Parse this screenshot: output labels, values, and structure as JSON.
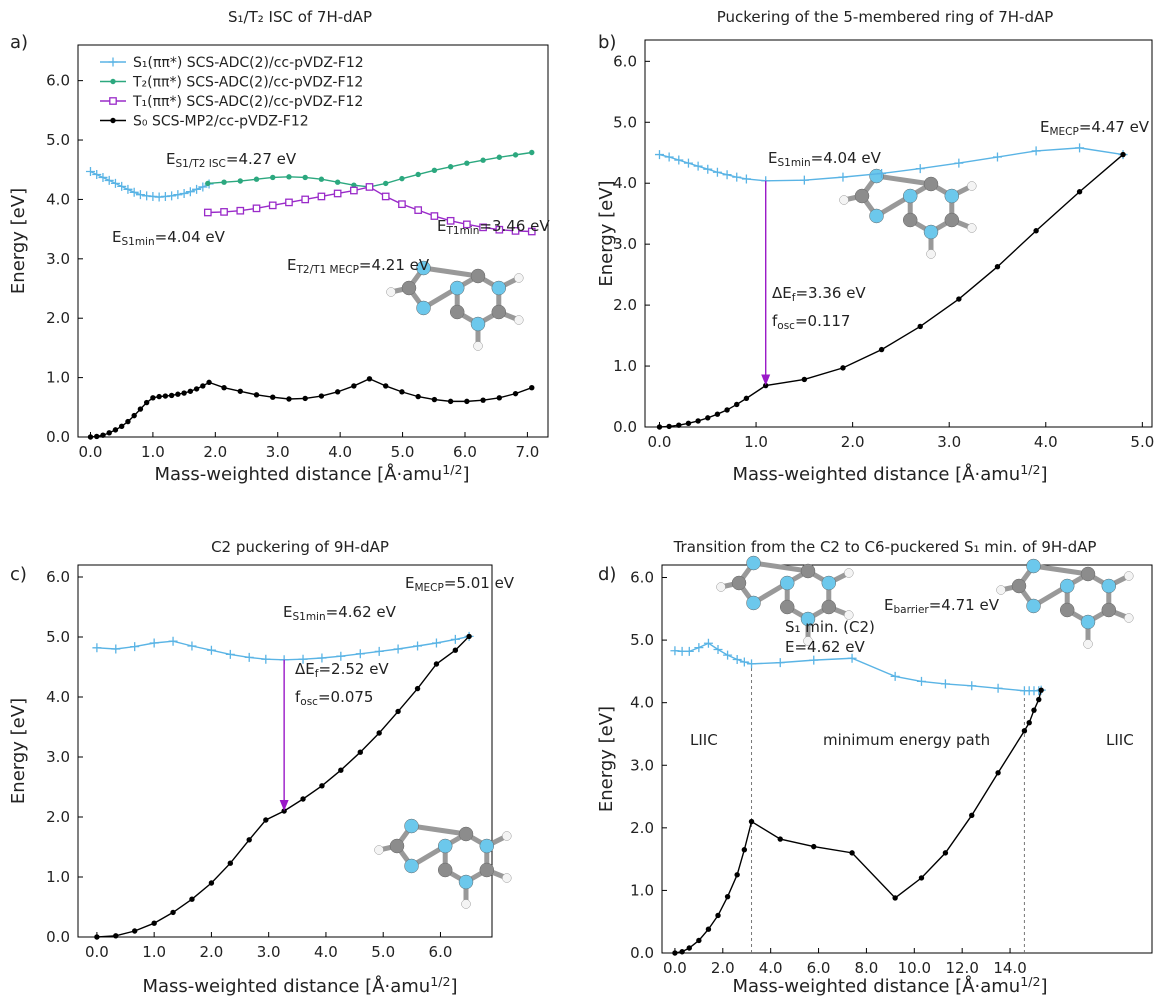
{
  "chart_data": [
    {
      "type": "line",
      "panel_label": "a)",
      "title": "S₁/T₂ ISC of 7H-dAP",
      "x_label": [
        {
          "text": "Mass-weighted distance [Å·amu"
        },
        {
          "text": "1/2",
          "sup": true
        },
        {
          "text": "]"
        }
      ],
      "y_label": "Energy [eV]",
      "xlim": [
        -0.2,
        7.33
      ],
      "ylim": [
        0,
        6.6
      ],
      "xticks": [
        {
          "value": 0,
          "label": "0.0"
        },
        {
          "value": 1,
          "label": "1.0"
        },
        {
          "value": 2,
          "label": "2.0"
        },
        {
          "value": 3,
          "label": "3.0"
        },
        {
          "value": 4,
          "label": "4.0"
        },
        {
          "value": 5,
          "label": "5.0"
        },
        {
          "value": 6,
          "label": "6.0"
        },
        {
          "value": 7,
          "label": "7.0"
        }
      ],
      "yticks": [
        {
          "value": 0,
          "label": "0.0"
        },
        {
          "value": 1,
          "label": "1.0"
        },
        {
          "value": 2,
          "label": "2.0"
        },
        {
          "value": 3,
          "label": "3.0"
        },
        {
          "value": 4,
          "label": "4.0"
        },
        {
          "value": 5,
          "label": "5.0"
        },
        {
          "value": 6,
          "label": "6.0"
        }
      ],
      "legend": "upper left",
      "series": [
        {
          "name": "S₁(ππ*) SCS-ADC(2)/cc-pVDZ-F12",
          "color": "#5ab4e5",
          "marker": "plus",
          "x": [
            0,
            0.1,
            0.2,
            0.3,
            0.4,
            0.5,
            0.6,
            0.7,
            0.8,
            0.9,
            1.0,
            1.1,
            1.2,
            1.3,
            1.4,
            1.5,
            1.6,
            1.7,
            1.8,
            1.9
          ],
          "values": [
            4.47,
            4.42,
            4.37,
            4.32,
            4.27,
            4.22,
            4.17,
            4.12,
            4.08,
            4.06,
            4.05,
            4.04,
            4.05,
            4.06,
            4.08,
            4.1,
            4.13,
            4.17,
            4.21,
            4.26
          ]
        },
        {
          "name": "T₂(ππ*) SCS-ADC(2)/cc-pVDZ-F12",
          "color": "#2ca87f",
          "marker": "dot",
          "x": [
            1.88,
            2.14,
            2.4,
            2.66,
            2.92,
            3.18,
            3.44,
            3.7,
            3.96,
            4.22,
            4.47,
            4.73,
            4.99,
            5.25,
            5.51,
            5.77,
            6.03,
            6.29,
            6.55,
            6.81,
            7.07
          ],
          "values": [
            4.27,
            4.29,
            4.31,
            4.34,
            4.37,
            4.38,
            4.37,
            4.34,
            4.29,
            4.24,
            4.21,
            4.27,
            4.35,
            4.42,
            4.49,
            4.55,
            4.61,
            4.66,
            4.71,
            4.75,
            4.79
          ]
        },
        {
          "name": "T₁(ππ*) SCS-ADC(2)/cc-pVDZ-F12",
          "color": "#9a2bc9",
          "marker": "square",
          "x": [
            1.88,
            2.14,
            2.4,
            2.66,
            2.92,
            3.18,
            3.44,
            3.7,
            3.96,
            4.22,
            4.47,
            4.73,
            4.99,
            5.25,
            5.51,
            5.77,
            6.03,
            6.29,
            6.55,
            6.81,
            7.07
          ],
          "values": [
            3.78,
            3.79,
            3.81,
            3.85,
            3.9,
            3.95,
            4.0,
            4.05,
            4.1,
            4.15,
            4.21,
            4.05,
            3.92,
            3.82,
            3.72,
            3.64,
            3.58,
            3.53,
            3.49,
            3.47,
            3.46
          ]
        },
        {
          "name": "S₀ SCS-MP2/cc-pVDZ-F12",
          "color": "#000000",
          "marker": "dot",
          "x": [
            0,
            0.1,
            0.2,
            0.3,
            0.4,
            0.5,
            0.6,
            0.7,
            0.8,
            0.9,
            1.0,
            1.1,
            1.2,
            1.3,
            1.4,
            1.5,
            1.6,
            1.7,
            1.8,
            1.9,
            2.14,
            2.4,
            2.66,
            2.92,
            3.18,
            3.44,
            3.7,
            3.96,
            4.22,
            4.47,
            4.73,
            4.99,
            5.25,
            5.51,
            5.77,
            6.03,
            6.29,
            6.55,
            6.81,
            7.07
          ],
          "values": [
            0,
            0.01,
            0.03,
            0.07,
            0.12,
            0.18,
            0.26,
            0.36,
            0.47,
            0.58,
            0.66,
            0.68,
            0.69,
            0.7,
            0.72,
            0.74,
            0.77,
            0.81,
            0.86,
            0.92,
            0.83,
            0.77,
            0.71,
            0.67,
            0.64,
            0.65,
            0.69,
            0.76,
            0.86,
            0.98,
            0.86,
            0.76,
            0.68,
            0.63,
            0.6,
            0.6,
            0.62,
            0.66,
            0.73,
            0.83
          ]
        }
      ],
      "annotations": [
        [
          {
            "text": "E"
          },
          {
            "text": "S1/T2 ISC",
            "sub": true
          },
          {
            "text": "=4.27 eV"
          }
        ],
        [
          {
            "text": "E"
          },
          {
            "text": "S1min",
            "sub": true
          },
          {
            "text": "=4.04 eV"
          }
        ],
        [
          {
            "text": "E"
          },
          {
            "text": "T1min",
            "sub": true
          },
          {
            "text": "=3.46 eV"
          }
        ],
        [
          {
            "text": "E"
          },
          {
            "text": "T2/T1 MECP",
            "sub": true
          },
          {
            "text": "=4.21 eV"
          }
        ]
      ]
    },
    {
      "type": "line",
      "panel_label": "b)",
      "title": "Puckering of the 5-membered ring of 7H-dAP",
      "x_label": [
        {
          "text": "Mass-weighted distance [Å·amu"
        },
        {
          "text": "1/2",
          "sup": true
        },
        {
          "text": "]"
        }
      ],
      "y_label": "Energy [eV]",
      "xlim": [
        -0.15,
        5.1
      ],
      "ylim": [
        0,
        6.35
      ],
      "xticks": [
        {
          "value": 0,
          "label": "0.0"
        },
        {
          "value": 1,
          "label": "1.0"
        },
        {
          "value": 2,
          "label": "2.0"
        },
        {
          "value": 3,
          "label": "3.0"
        },
        {
          "value": 4,
          "label": "4.0"
        },
        {
          "value": 5,
          "label": "5.0"
        }
      ],
      "yticks": [
        {
          "value": 0,
          "label": "0.0"
        },
        {
          "value": 1,
          "label": "1.0"
        },
        {
          "value": 2,
          "label": "2.0"
        },
        {
          "value": 3,
          "label": "3.0"
        },
        {
          "value": 4,
          "label": "4.0"
        },
        {
          "value": 5,
          "label": "5.0"
        },
        {
          "value": 6,
          "label": "6.0"
        }
      ],
      "series": [
        {
          "color": "#5ab4e5",
          "marker": "plus",
          "x": [
            0,
            0.1,
            0.2,
            0.3,
            0.4,
            0.5,
            0.6,
            0.7,
            0.8,
            0.9,
            1.1,
            1.5,
            1.9,
            2.3,
            2.7,
            3.1,
            3.5,
            3.9,
            4.35,
            4.8
          ],
          "values": [
            4.47,
            4.43,
            4.38,
            4.33,
            4.28,
            4.23,
            4.18,
            4.14,
            4.1,
            4.07,
            4.04,
            4.05,
            4.1,
            4.16,
            4.24,
            4.33,
            4.43,
            4.53,
            4.58,
            4.47
          ]
        },
        {
          "color": "#000000",
          "marker": "dot",
          "x": [
            0,
            0.1,
            0.2,
            0.3,
            0.4,
            0.5,
            0.6,
            0.7,
            0.8,
            0.9,
            1.1,
            1.5,
            1.9,
            2.3,
            2.7,
            3.1,
            3.5,
            3.9,
            4.35,
            4.8
          ],
          "values": [
            0,
            0.01,
            0.03,
            0.06,
            0.1,
            0.15,
            0.21,
            0.28,
            0.37,
            0.47,
            0.68,
            0.78,
            0.97,
            1.27,
            1.65,
            2.1,
            2.63,
            3.22,
            3.86,
            4.47
          ]
        }
      ],
      "arrow": {
        "x": 1.1,
        "from": 4.04,
        "to": 0.68,
        "color": "#9a19c8"
      },
      "annotations": [
        [
          {
            "text": "E"
          },
          {
            "text": "MECP",
            "sub": true
          },
          {
            "text": "=4.47 eV"
          }
        ],
        [
          {
            "text": "E"
          },
          {
            "text": "S1min",
            "sub": true
          },
          {
            "text": "=4.04 eV"
          }
        ],
        [
          {
            "text": "ΔE"
          },
          {
            "text": "f",
            "sub": true
          },
          {
            "text": "=3.36 eV"
          }
        ],
        [
          {
            "text": "f"
          },
          {
            "text": "osc",
            "sub": true
          },
          {
            "text": "=0.117"
          }
        ]
      ]
    },
    {
      "type": "line",
      "panel_label": "c)",
      "title": "C2 puckering of 9H-dAP",
      "x_label": [
        {
          "text": "Mass-weighted distance [Å·amu"
        },
        {
          "text": "1/2",
          "sup": true
        },
        {
          "text": "]"
        }
      ],
      "y_label": "Energy [eV]",
      "xlim": [
        -0.33,
        6.9
      ],
      "ylim": [
        0,
        6.2
      ],
      "xticks": [
        {
          "value": 0,
          "label": "0.0"
        },
        {
          "value": 1,
          "label": "1.0"
        },
        {
          "value": 2,
          "label": "2.0"
        },
        {
          "value": 3,
          "label": "3.0"
        },
        {
          "value": 4,
          "label": "4.0"
        },
        {
          "value": 5,
          "label": "5.0"
        },
        {
          "value": 6,
          "label": "6.0"
        }
      ],
      "yticks": [
        {
          "value": 0,
          "label": "0.0"
        },
        {
          "value": 1,
          "label": "1.0"
        },
        {
          "value": 2,
          "label": "2.0"
        },
        {
          "value": 3,
          "label": "3.0"
        },
        {
          "value": 4,
          "label": "4.0"
        },
        {
          "value": 5,
          "label": "5.0"
        },
        {
          "value": 6,
          "label": "6.0"
        }
      ],
      "series": [
        {
          "color": "#5ab4e5",
          "marker": "plus",
          "x": [
            0,
            0.33,
            0.66,
            1.0,
            1.33,
            1.66,
            2.0,
            2.33,
            2.66,
            2.95,
            3.27,
            3.6,
            3.93,
            4.26,
            4.6,
            4.93,
            5.26,
            5.6,
            5.93,
            6.26,
            6.5
          ],
          "values": [
            4.82,
            4.8,
            4.84,
            4.9,
            4.93,
            4.85,
            4.78,
            4.71,
            4.66,
            4.63,
            4.62,
            4.63,
            4.65,
            4.68,
            4.72,
            4.76,
            4.8,
            4.85,
            4.9,
            4.96,
            5.01
          ]
        },
        {
          "color": "#000000",
          "marker": "dot",
          "x": [
            0,
            0.33,
            0.66,
            1.0,
            1.33,
            1.66,
            2.0,
            2.33,
            2.66,
            2.95,
            3.27,
            3.6,
            3.93,
            4.26,
            4.6,
            4.93,
            5.26,
            5.6,
            5.93,
            6.26,
            6.5
          ],
          "values": [
            0,
            0.02,
            0.1,
            0.23,
            0.41,
            0.63,
            0.9,
            1.23,
            1.62,
            1.95,
            2.1,
            2.3,
            2.52,
            2.78,
            3.08,
            3.4,
            3.76,
            4.14,
            4.55,
            4.78,
            5.01
          ]
        }
      ],
      "arrow": {
        "x": 3.27,
        "from": 4.62,
        "to": 2.1,
        "color": "#9a19c8"
      },
      "annotations": [
        [
          {
            "text": "E"
          },
          {
            "text": "MECP",
            "sub": true
          },
          {
            "text": "=5.01 eV"
          }
        ],
        [
          {
            "text": "E"
          },
          {
            "text": "S1min",
            "sub": true
          },
          {
            "text": "=4.62 eV"
          }
        ],
        [
          {
            "text": "ΔE"
          },
          {
            "text": "f",
            "sub": true
          },
          {
            "text": "=2.52 eV"
          }
        ],
        [
          {
            "text": "f"
          },
          {
            "text": "osc",
            "sub": true
          },
          {
            "text": "=0.075"
          }
        ]
      ]
    },
    {
      "type": "line",
      "panel_label": "d)",
      "title": "Transition from the C2 to C6-puckered S₁ min. of 9H-dAP",
      "x_label": [
        {
          "text": "Mass-weighted distance [Å·amu"
        },
        {
          "text": "1/2",
          "sup": true
        },
        {
          "text": "]"
        }
      ],
      "y_label": "Energy [eV]",
      "xlim": [
        -0.54,
        19.93
      ],
      "ylim": [
        0,
        6.2
      ],
      "xticks": [
        {
          "value": 0,
          "label": "0.0"
        },
        {
          "value": 2,
          "label": "2.0"
        },
        {
          "value": 4,
          "label": "4.0"
        },
        {
          "value": 6,
          "label": "6.0"
        },
        {
          "value": 8,
          "label": "8.0"
        },
        {
          "value": 10,
          "label": "10.0"
        },
        {
          "value": 12,
          "label": "12.0"
        },
        {
          "value": 14,
          "label": "14.0"
        }
      ],
      "yticks": [
        {
          "value": 0,
          "label": "0.0"
        },
        {
          "value": 1,
          "label": "1.0"
        },
        {
          "value": 2,
          "label": "2.0"
        },
        {
          "value": 3,
          "label": "3.0"
        },
        {
          "value": 4,
          "label": "4.0"
        },
        {
          "value": 5,
          "label": "5.0"
        },
        {
          "value": 6,
          "label": "6.0"
        }
      ],
      "series": [
        {
          "color": "#5ab4e5",
          "marker": "plus",
          "x": [
            0,
            0.3,
            0.6,
            1.0,
            1.4,
            1.8,
            2.2,
            2.6,
            2.9,
            3.2,
            4.4,
            5.8,
            7.4,
            9.2,
            10.3,
            11.3,
            12.4,
            13.5,
            14.6,
            14.8,
            15.0,
            15.2,
            15.3
          ],
          "values": [
            4.83,
            4.82,
            4.82,
            4.88,
            4.95,
            4.85,
            4.76,
            4.69,
            4.65,
            4.62,
            4.64,
            4.68,
            4.71,
            4.42,
            4.34,
            4.3,
            4.27,
            4.23,
            4.19,
            4.19,
            4.19,
            4.19,
            4.2
          ]
        },
        {
          "color": "#000000",
          "marker": "dot",
          "x": [
            0,
            0.3,
            0.6,
            1.0,
            1.4,
            1.8,
            2.2,
            2.6,
            2.9,
            3.2,
            4.4,
            5.8,
            7.4,
            9.2,
            10.3,
            11.3,
            12.4,
            13.5,
            14.6,
            14.8,
            15.0,
            15.2,
            15.3
          ],
          "values": [
            0,
            0.02,
            0.08,
            0.2,
            0.38,
            0.6,
            0.9,
            1.25,
            1.65,
            2.1,
            1.82,
            1.7,
            1.6,
            0.88,
            1.2,
            1.6,
            2.2,
            2.88,
            3.55,
            3.68,
            3.88,
            4.05,
            4.2
          ]
        }
      ],
      "vlines": [
        3.2,
        14.6
      ],
      "annotations": [
        [
          {
            "text": "S₁ min. (C2)"
          }
        ],
        [
          {
            "text": "E=4.62 eV"
          }
        ],
        [
          {
            "text": "E"
          },
          {
            "text": "barrier",
            "sub": true
          },
          {
            "text": "=4.71 eV"
          }
        ],
        [
          {
            "text": "LIIC"
          }
        ],
        [
          {
            "text": "minimum energy path"
          }
        ],
        [
          {
            "text": "LIIC"
          }
        ]
      ]
    }
  ]
}
